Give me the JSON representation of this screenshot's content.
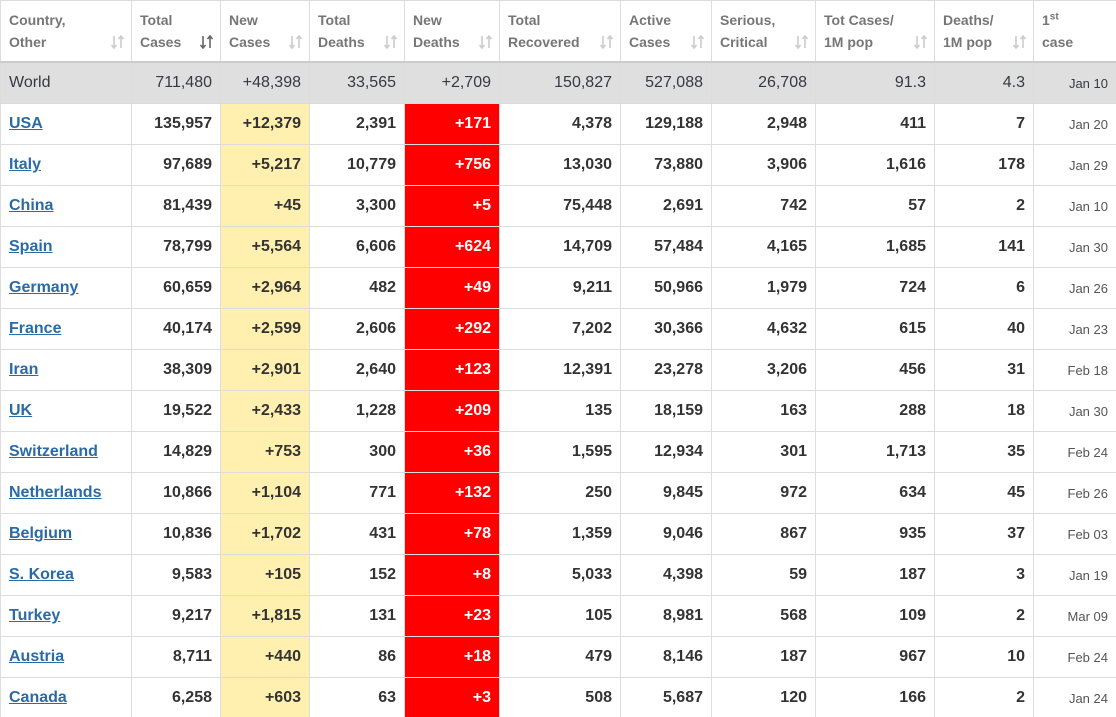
{
  "table": {
    "headers": [
      {
        "line1": "Country,",
        "line2": "Other"
      },
      {
        "line1": "Total",
        "line2": "Cases"
      },
      {
        "line1": "New",
        "line2": "Cases"
      },
      {
        "line1": "Total",
        "line2": "Deaths"
      },
      {
        "line1": "New",
        "line2": "Deaths"
      },
      {
        "line1": "Total",
        "line2": "Recovered"
      },
      {
        "line1": "Active",
        "line2": "Cases"
      },
      {
        "line1": "Serious,",
        "line2": "Critical"
      },
      {
        "line1": "Tot Cases/",
        "line2": "1M pop"
      },
      {
        "line1": "Deaths/",
        "line2": "1M pop"
      },
      {
        "line1": "1",
        "sup": "st",
        "line2": "case"
      }
    ],
    "rows": [
      [
        "World",
        "711,480",
        "+48,398",
        "33,565",
        "+2,709",
        "150,827",
        "527,088",
        "26,708",
        "91.3",
        "4.3",
        "Jan 10"
      ],
      [
        "USA",
        "135,957",
        "+12,379",
        "2,391",
        "+171",
        "4,378",
        "129,188",
        "2,948",
        "411",
        "7",
        "Jan 20"
      ],
      [
        "Italy",
        "97,689",
        "+5,217",
        "10,779",
        "+756",
        "13,030",
        "73,880",
        "3,906",
        "1,616",
        "178",
        "Jan 29"
      ],
      [
        "China",
        "81,439",
        "+45",
        "3,300",
        "+5",
        "75,448",
        "2,691",
        "742",
        "57",
        "2",
        "Jan 10"
      ],
      [
        "Spain",
        "78,799",
        "+5,564",
        "6,606",
        "+624",
        "14,709",
        "57,484",
        "4,165",
        "1,685",
        "141",
        "Jan 30"
      ],
      [
        "Germany",
        "60,659",
        "+2,964",
        "482",
        "+49",
        "9,211",
        "50,966",
        "1,979",
        "724",
        "6",
        "Jan 26"
      ],
      [
        "France",
        "40,174",
        "+2,599",
        "2,606",
        "+292",
        "7,202",
        "30,366",
        "4,632",
        "615",
        "40",
        "Jan 23"
      ],
      [
        "Iran",
        "38,309",
        "+2,901",
        "2,640",
        "+123",
        "12,391",
        "23,278",
        "3,206",
        "456",
        "31",
        "Feb 18"
      ],
      [
        "UK",
        "19,522",
        "+2,433",
        "1,228",
        "+209",
        "135",
        "18,159",
        "163",
        "288",
        "18",
        "Jan 30"
      ],
      [
        "Switzerland",
        "14,829",
        "+753",
        "300",
        "+36",
        "1,595",
        "12,934",
        "301",
        "1,713",
        "35",
        "Feb 24"
      ],
      [
        "Netherlands",
        "10,866",
        "+1,104",
        "771",
        "+132",
        "250",
        "9,845",
        "972",
        "634",
        "45",
        "Feb 26"
      ],
      [
        "Belgium",
        "10,836",
        "+1,702",
        "431",
        "+78",
        "1,359",
        "9,046",
        "867",
        "935",
        "37",
        "Feb 03"
      ],
      [
        "S. Korea",
        "9,583",
        "+105",
        "152",
        "+8",
        "5,033",
        "4,398",
        "59",
        "187",
        "3",
        "Jan 19"
      ],
      [
        "Turkey",
        "9,217",
        "+1,815",
        "131",
        "+23",
        "105",
        "8,981",
        "568",
        "109",
        "2",
        "Mar 09"
      ],
      [
        "Austria",
        "8,711",
        "+440",
        "86",
        "+18",
        "479",
        "8,146",
        "187",
        "967",
        "10",
        "Feb 24"
      ],
      [
        "Canada",
        "6,258",
        "+603",
        "63",
        "+3",
        "508",
        "5,687",
        "120",
        "166",
        "2",
        "Jan 24"
      ]
    ]
  }
}
